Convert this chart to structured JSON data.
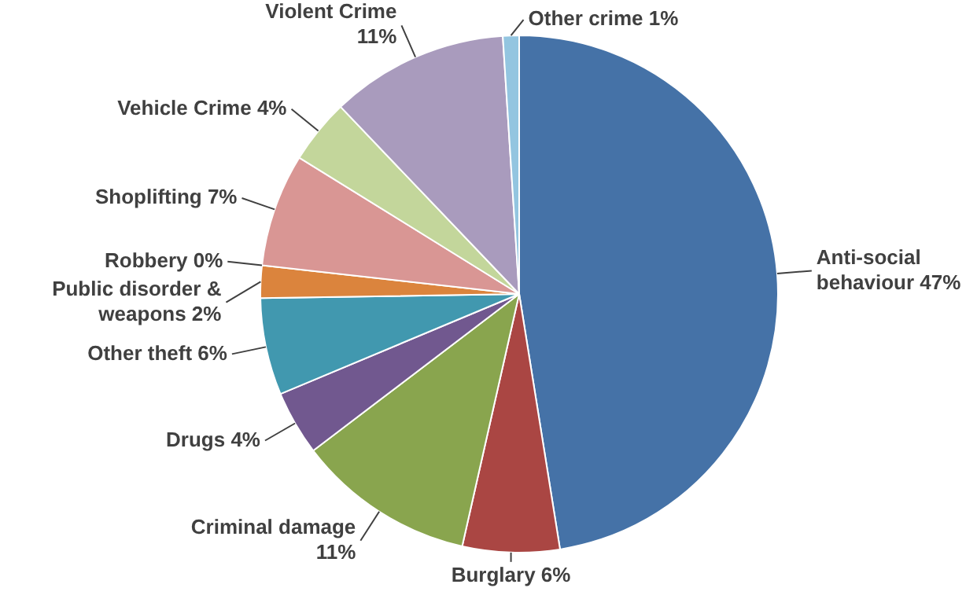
{
  "chart_data": {
    "type": "pie",
    "categories": [
      "Anti-social behaviour",
      "Burglary",
      "Criminal damage",
      "Drugs",
      "Other theft",
      "Public disorder & weapons",
      "Robbery",
      "Shoplifting",
      "Vehicle Crime",
      "Violent Crime",
      "Other crime"
    ],
    "values": [
      47,
      6,
      11,
      4,
      6,
      2,
      0,
      7,
      4,
      11,
      1
    ],
    "value_labels": [
      "47%",
      "6%",
      "11%",
      "4%",
      "6%",
      "2%",
      "0%",
      "7%",
      "4%",
      "11%",
      "1%"
    ],
    "colors": [
      "#4572a7",
      "#aa4643",
      "#89a54e",
      "#71588f",
      "#4198af",
      "#db843d",
      "#93a9cf",
      "#d99694",
      "#c3d69b",
      "#a99bbd",
      "#93c5e0"
    ]
  }
}
